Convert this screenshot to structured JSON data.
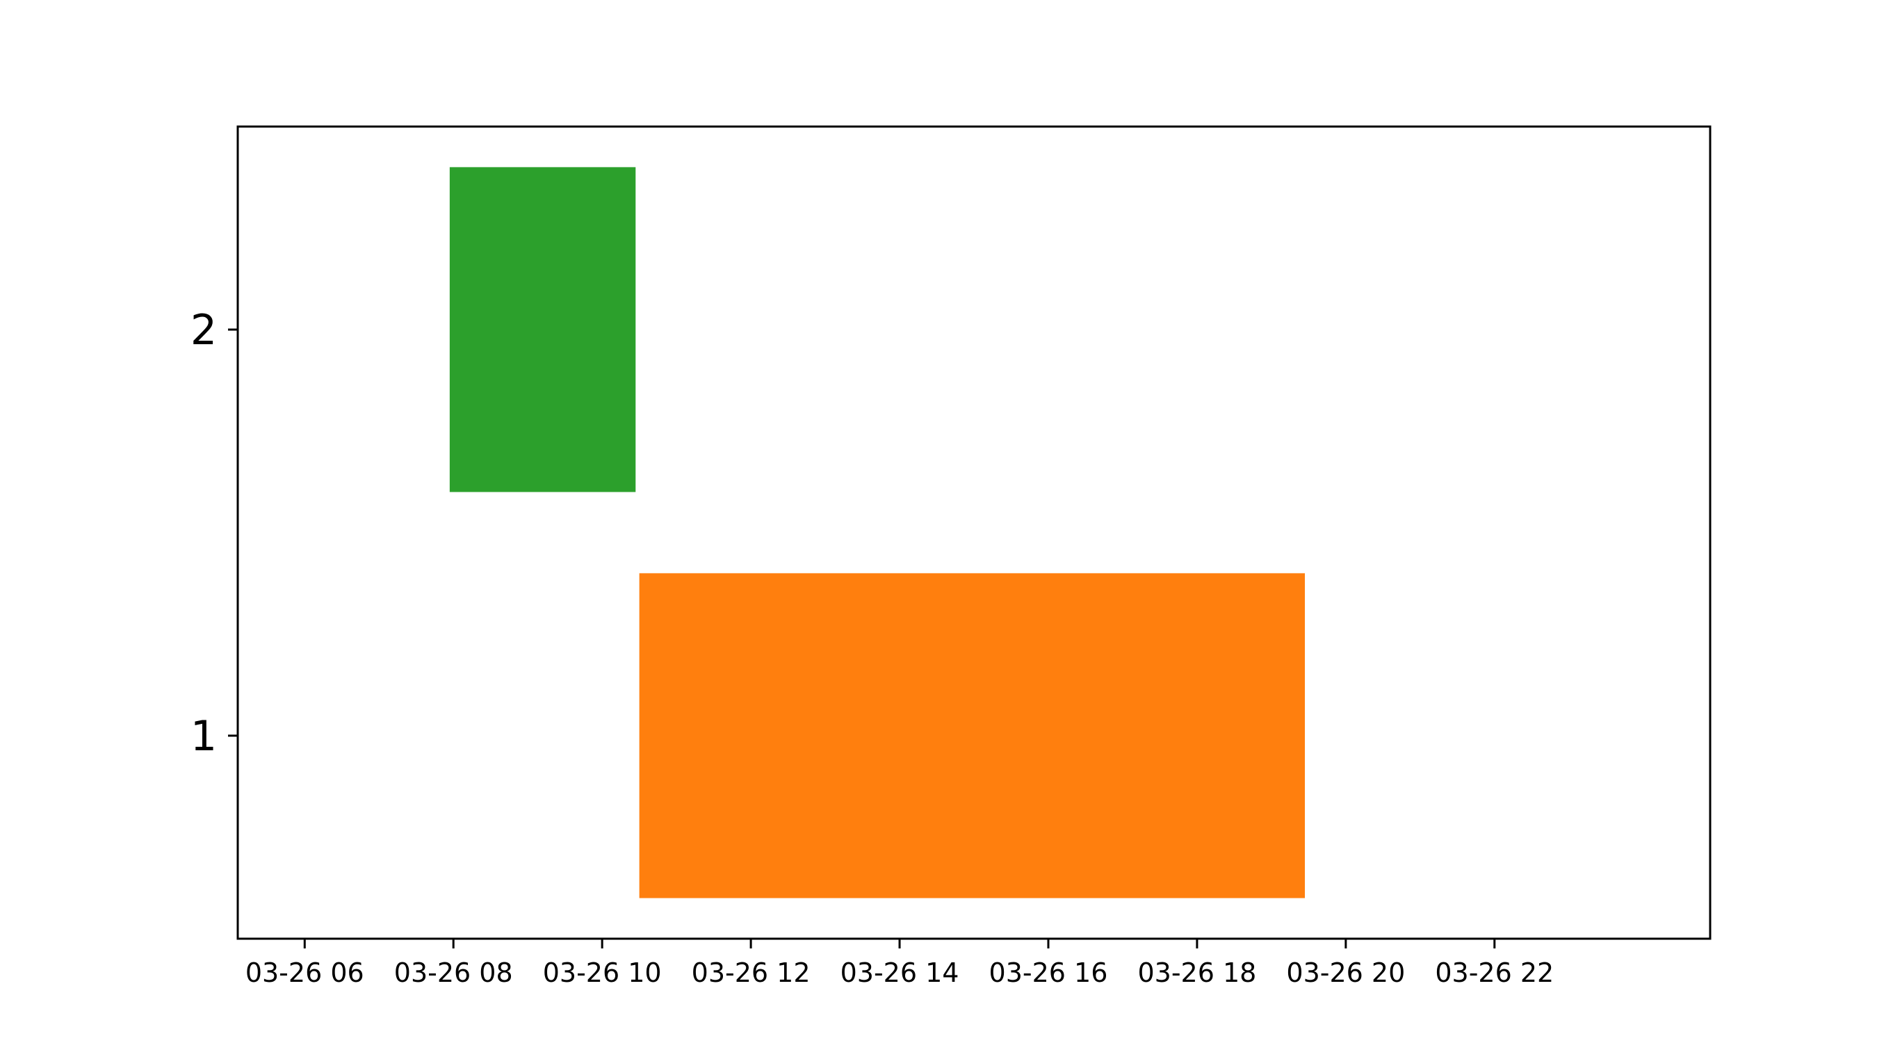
{
  "chart_data": {
    "type": "bar",
    "orientation": "horizontal",
    "title": "",
    "xlabel": "",
    "ylabel": "",
    "x_axis_type": "time",
    "x_ticks": [
      {
        "hour": 6,
        "label": "03-26 06"
      },
      {
        "hour": 8,
        "label": "03-26 08"
      },
      {
        "hour": 10,
        "label": "03-26 10"
      },
      {
        "hour": 12,
        "label": "03-26 12"
      },
      {
        "hour": 14,
        "label": "03-26 14"
      },
      {
        "hour": 16,
        "label": "03-26 16"
      },
      {
        "hour": 18,
        "label": "03-26 18"
      },
      {
        "hour": 20,
        "label": "03-26 20"
      },
      {
        "hour": 22,
        "label": "03-26 22"
      }
    ],
    "y_ticks": [
      {
        "value": 1,
        "label": "1"
      },
      {
        "value": 2,
        "label": "2"
      }
    ],
    "xlim": [
      5.1,
      24.9
    ],
    "ylim": [
      0.5,
      2.5
    ],
    "grid": false,
    "bars": [
      {
        "y": 2,
        "start_hour": 7.95,
        "end_hour": 10.45,
        "height": 0.8,
        "color": "#2ca02c"
      },
      {
        "y": 1,
        "start_hour": 10.5,
        "end_hour": 19.45,
        "height": 0.8,
        "color": "#ff7f0e"
      }
    ]
  }
}
